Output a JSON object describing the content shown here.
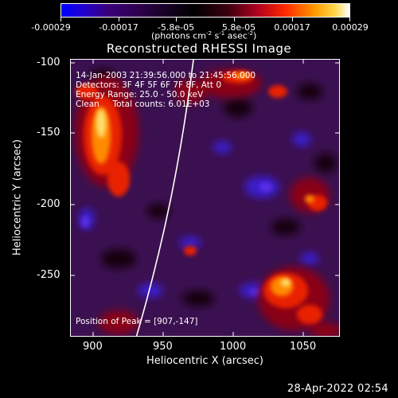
{
  "colorbar": {
    "tick_labels": [
      "-0.00029",
      "-0.00017",
      "-5.8e-05",
      "5.8e-05",
      "0.00017",
      "0.00029"
    ],
    "unit_label_prefix": "(photons cm",
    "unit_exp1": "-2",
    "unit_mid": " s",
    "unit_exp2": "-1",
    "unit_mid2": " asec",
    "unit_exp3": "-2",
    "unit_suffix": ")"
  },
  "title": "Reconstructed RHESSI Image",
  "annotations": {
    "time_range": "14-Jan-2003 21:39:56.000 to 21:45:56.000",
    "detectors": "Detectors: 3F 4F 5F 6F 7F 8F, Att 0",
    "energy": "Energy Range: 25.0 - 50.0 keV",
    "clean": "Clean     Total counts: 6.01E+03",
    "peak": "Position of Peak = [907,-147]"
  },
  "axes": {
    "xlabel": "Heliocentric X (arcsec)",
    "ylabel": "Heliocentric Y (arcsec)",
    "x_ticks": [
      "900",
      "950",
      "1000",
      "1050"
    ],
    "y_ticks": [
      "-100",
      "-150",
      "-200",
      "-250"
    ]
  },
  "timestamp": "28-Apr-2022 02:54",
  "colors": {
    "limb": "#ffffff",
    "text": "#ffffff",
    "background": "#000000"
  }
}
